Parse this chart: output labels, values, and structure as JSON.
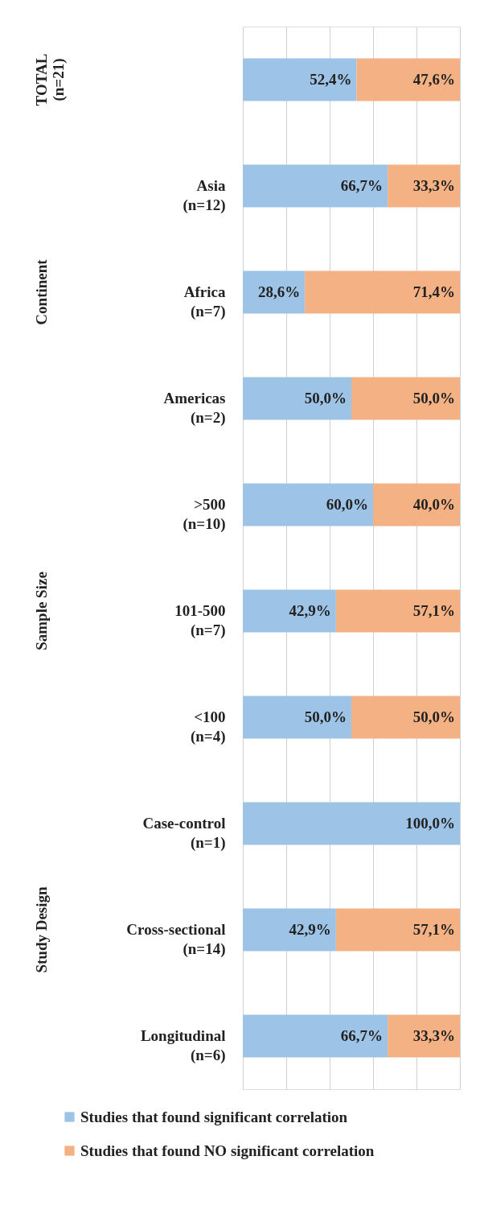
{
  "chart_data": {
    "type": "bar",
    "orientation": "horizontal",
    "stacked": true,
    "categories": [
      null,
      "Asia\n(n=12)",
      "Africa\n(n=7)",
      "Americas\n(n=2)",
      ">500\n(n=10)",
      "101-500\n(n=7)",
      "<100\n(n=4)",
      "Case-control\n(n=1)",
      "Cross-sectional\n(n=14)",
      "Longitudinal\n(n=6)"
    ],
    "series": [
      {
        "name": "Studies that found significant correlation",
        "color": "#9dc3e6",
        "values": [
          52.4,
          66.7,
          28.6,
          50.0,
          60.0,
          42.9,
          50.0,
          100.0,
          42.9,
          66.7
        ],
        "value_labels": [
          "52,4%",
          "66,7%",
          "28,6%",
          "50,0%",
          "60,0%",
          "42,9%",
          "50,0%",
          "100,0%",
          "42,9%",
          "66,7%"
        ]
      },
      {
        "name": "Studies that found NO significant correlation",
        "color": "#f4b183",
        "values": [
          47.6,
          33.3,
          71.4,
          50.0,
          40.0,
          57.1,
          50.0,
          null,
          57.1,
          33.3
        ],
        "value_labels": [
          "47,6%",
          "33,3%",
          "71,4%",
          "50,0%",
          "40,0%",
          "57,1%",
          "50,0%",
          null,
          "57,1%",
          "33,3%"
        ]
      }
    ],
    "xlim": [
      0,
      100
    ],
    "xticks": [
      {
        "value": 0,
        "label": null
      },
      {
        "value": 20,
        "label": null
      },
      {
        "value": 40,
        "label": null
      },
      {
        "value": 60,
        "label": null
      },
      {
        "value": 80,
        "label": null
      },
      {
        "value": 100,
        "label": null
      }
    ],
    "tick_labels": "y",
    "grid": "x",
    "legend": "bottom",
    "annotations": [
      "TOTAL\n(n=21)",
      "Continent",
      "Sample Size",
      "Study Design"
    ]
  }
}
